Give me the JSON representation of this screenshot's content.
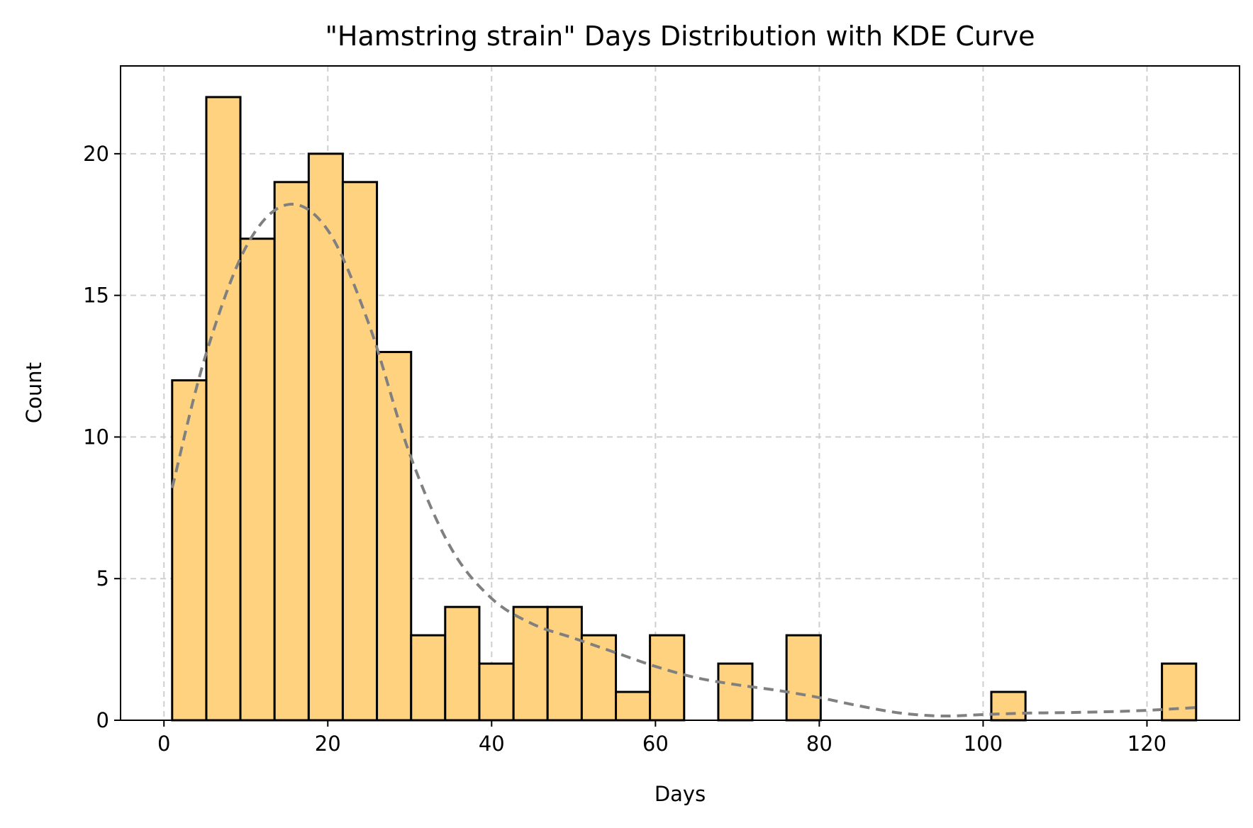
{
  "chart_data": {
    "type": "bar",
    "title": "\"Hamstring strain\" Days Distribution with KDE Curve",
    "xlabel": "Days",
    "ylabel": "Count",
    "xlim": [
      -5.3,
      131.3
    ],
    "ylim": [
      0,
      23.1
    ],
    "xticks": [
      0,
      20,
      40,
      60,
      80,
      100,
      120
    ],
    "yticks": [
      0,
      5,
      10,
      15,
      20
    ],
    "grid": true,
    "bins": [
      {
        "x0": 1.0,
        "x1": 5.17,
        "count": 12
      },
      {
        "x0": 5.17,
        "x1": 9.33,
        "count": 22
      },
      {
        "x0": 9.33,
        "x1": 13.5,
        "count": 17
      },
      {
        "x0": 13.5,
        "x1": 17.67,
        "count": 19
      },
      {
        "x0": 17.67,
        "x1": 21.83,
        "count": 20
      },
      {
        "x0": 21.83,
        "x1": 26.0,
        "count": 19
      },
      {
        "x0": 26.0,
        "x1": 30.17,
        "count": 13
      },
      {
        "x0": 30.17,
        "x1": 34.33,
        "count": 3
      },
      {
        "x0": 34.33,
        "x1": 38.5,
        "count": 4
      },
      {
        "x0": 38.5,
        "x1": 42.67,
        "count": 2
      },
      {
        "x0": 42.67,
        "x1": 46.83,
        "count": 4
      },
      {
        "x0": 46.83,
        "x1": 51.0,
        "count": 4
      },
      {
        "x0": 51.0,
        "x1": 55.17,
        "count": 3
      },
      {
        "x0": 55.17,
        "x1": 59.33,
        "count": 1
      },
      {
        "x0": 59.33,
        "x1": 63.5,
        "count": 3
      },
      {
        "x0": 63.5,
        "x1": 67.67,
        "count": 0
      },
      {
        "x0": 67.67,
        "x1": 71.83,
        "count": 2
      },
      {
        "x0": 71.83,
        "x1": 76.0,
        "count": 0
      },
      {
        "x0": 76.0,
        "x1": 80.17,
        "count": 3
      },
      {
        "x0": 80.17,
        "x1": 84.33,
        "count": 0
      },
      {
        "x0": 84.33,
        "x1": 88.5,
        "count": 0
      },
      {
        "x0": 88.5,
        "x1": 92.67,
        "count": 0
      },
      {
        "x0": 92.67,
        "x1": 96.83,
        "count": 0
      },
      {
        "x0": 96.83,
        "x1": 101.0,
        "count": 0
      },
      {
        "x0": 101.0,
        "x1": 105.17,
        "count": 1
      },
      {
        "x0": 105.17,
        "x1": 109.33,
        "count": 0
      },
      {
        "x0": 109.33,
        "x1": 113.5,
        "count": 0
      },
      {
        "x0": 113.5,
        "x1": 117.67,
        "count": 0
      },
      {
        "x0": 117.67,
        "x1": 121.83,
        "count": 0
      },
      {
        "x0": 121.83,
        "x1": 126.0,
        "count": 2
      }
    ],
    "kde": {
      "x": [
        1,
        5,
        10,
        15,
        20,
        25,
        30,
        35,
        40,
        45,
        50,
        55,
        60,
        65,
        70,
        75,
        80,
        85,
        90,
        95,
        100,
        105,
        110,
        115,
        120,
        126
      ],
      "y": [
        8.2,
        12.8,
        16.7,
        18.2,
        17.3,
        14.0,
        9.4,
        6.1,
        4.3,
        3.4,
        2.9,
        2.4,
        1.9,
        1.5,
        1.25,
        1.05,
        0.8,
        0.5,
        0.25,
        0.15,
        0.2,
        0.25,
        0.27,
        0.3,
        0.35,
        0.45
      ]
    },
    "colors": {
      "bar_fill": "#ffd280",
      "bar_edge": "#000000",
      "kde_line": "#808080",
      "grid": "#cfcfcf"
    }
  }
}
